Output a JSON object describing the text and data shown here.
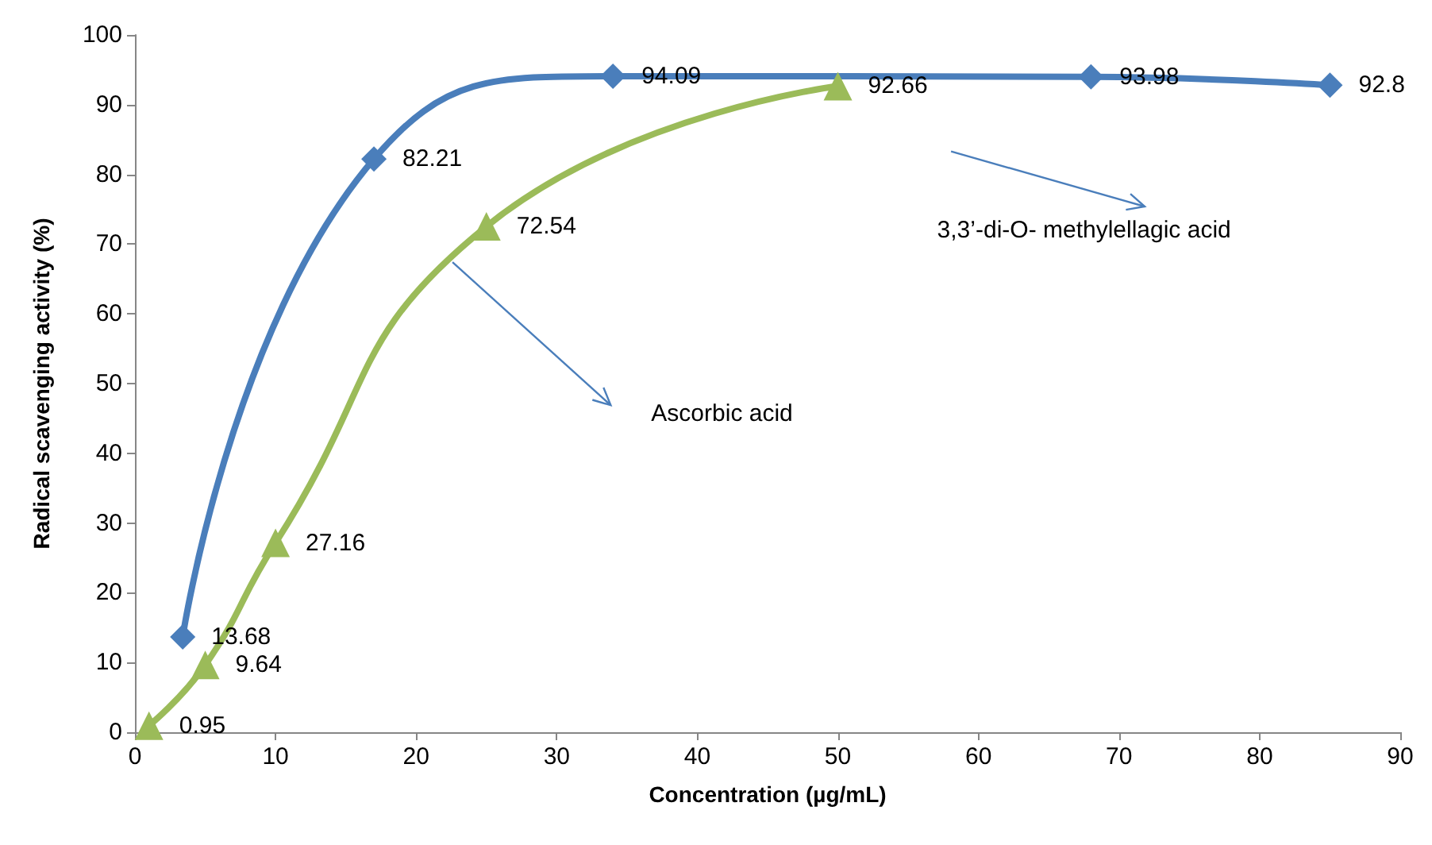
{
  "chart_data": {
    "type": "line",
    "xlabel": "Concentration (µg/mL)",
    "ylabel": "Radical scavenging activity (%)",
    "series": [
      {
        "color": "#4a7ebb",
        "marker": "diamond",
        "x": [
          3.4,
          17,
          34,
          68,
          85
        ],
        "values": [
          13.68,
          82.21,
          94.09,
          93.98,
          92.8
        ]
      },
      {
        "color": "#9bbb59",
        "marker": "triangle",
        "x": [
          1,
          5,
          10,
          25,
          50
        ],
        "values": [
          0.95,
          9.64,
          27.16,
          72.54,
          92.66
        ]
      }
    ],
    "xlim": [
      0,
      90
    ],
    "xticks": [
      0,
      10,
      20,
      30,
      40,
      50,
      60,
      70,
      80,
      90
    ],
    "ylim": [
      0,
      100
    ],
    "yticks": [
      0,
      10,
      20,
      30,
      40,
      50,
      60,
      70,
      80,
      90,
      100
    ],
    "annotations": [
      "3,3’-di-O- methylellagic acid",
      "Ascorbic acid"
    ],
    "grid": false,
    "data_labels": true
  }
}
